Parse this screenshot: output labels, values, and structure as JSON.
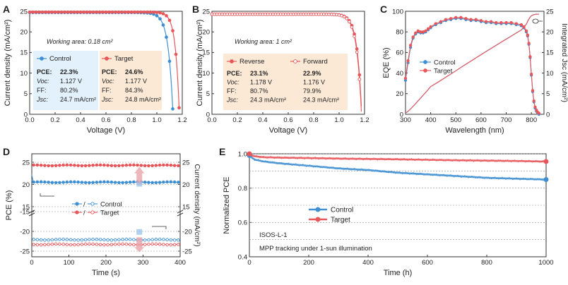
{
  "colors": {
    "blue": "#3f8fd2",
    "red": "#e8565a",
    "axis": "#333333",
    "grid": "#8a8a8a",
    "box_blue": "#e2f1fb",
    "box_orange": "#fbe9d6"
  },
  "chart_data": [
    {
      "panel": "A",
      "type": "line",
      "xlabel": "Voltage (V)",
      "ylabel": "Current density (mA/cm²)",
      "xlim": [
        0.0,
        1.2
      ],
      "ylim": [
        0,
        25
      ],
      "xticks": [
        "0.0",
        "0.2",
        "0.4",
        "0.6",
        "0.8",
        "1.0",
        "1.2"
      ],
      "yticks": [
        "0",
        "5",
        "10",
        "15",
        "20",
        "25"
      ],
      "annotation": "Working area: 0.18 cm²",
      "series": [
        {
          "name": "Control",
          "color": "#3f8fd2",
          "jsc": 24.7,
          "voc": 1.127,
          "ff": 80.2
        },
        {
          "name": "Target",
          "color": "#e8565a",
          "jsc": 24.8,
          "voc": 1.177,
          "ff": 84.3
        }
      ],
      "table": {
        "headers": [
          "Control",
          "Target"
        ],
        "rows": [
          {
            "label": "PCE:",
            "values": [
              "22.3%",
              "24.6%"
            ]
          },
          {
            "label": "Voc:",
            "values": [
              "1.127 V",
              "1.177 V"
            ]
          },
          {
            "label": "FF:",
            "values": [
              "80.2%",
              "84.3%"
            ]
          },
          {
            "label": "Jsc:",
            "values": [
              "24.7 mA/cm²",
              "24.8 mA/cm²"
            ]
          }
        ]
      }
    },
    {
      "panel": "B",
      "type": "line",
      "xlabel": "Voltage (V)",
      "ylabel": "Current density (mA/cm²)",
      "xlim": [
        0.0,
        1.2
      ],
      "ylim": [
        0,
        25
      ],
      "xticks": [
        "0.0",
        "0.2",
        "0.4",
        "0.6",
        "0.8",
        "1.0",
        "1.2"
      ],
      "yticks": [
        "0",
        "5",
        "10",
        "15",
        "20",
        "25"
      ],
      "annotation": "Working area: 1 cm²",
      "series": [
        {
          "name": "Reverse",
          "color": "#e8565a",
          "jsc": 24.3,
          "voc": 1.178,
          "ff": 80.7
        },
        {
          "name": "Forward",
          "color": "#e8565a",
          "jsc": 24.3,
          "voc": 1.176,
          "ff": 79.9
        }
      ],
      "table": {
        "headers": [
          "Reverse",
          "Forward"
        ],
        "rows": [
          {
            "label": "PCE:",
            "values": [
              "23.1%",
              "22.9%"
            ]
          },
          {
            "label": "Voc:",
            "values": [
              "1.178 V",
              "1.176 V"
            ]
          },
          {
            "label": "FF:",
            "values": [
              "80.7%",
              "79.9%"
            ]
          },
          {
            "label": "Jsc:",
            "values": [
              "24.3 mA/cm²",
              "24.3 mA/cm²"
            ]
          }
        ]
      }
    },
    {
      "panel": "C",
      "type": "line",
      "xlabel": "Wavelength (nm)",
      "ylabel": "EQE (%)",
      "ylabel_right": "Integrated Jsc (mA/cm²)",
      "xlim": [
        300,
        850
      ],
      "ylim": [
        0,
        100
      ],
      "ylim_right": [
        0,
        25
      ],
      "xticks": [
        "300",
        "400",
        "500",
        "600",
        "700",
        "800"
      ],
      "yticks": [
        "0",
        "20",
        "40",
        "60",
        "80",
        "100"
      ],
      "yticks_right": [
        "0",
        "5",
        "10",
        "15",
        "20",
        "25"
      ],
      "legend": [
        "Control",
        "Target"
      ],
      "x": [
        300,
        310,
        320,
        330,
        340,
        350,
        360,
        370,
        380,
        390,
        400,
        420,
        440,
        460,
        480,
        500,
        520,
        540,
        560,
        580,
        600,
        620,
        640,
        660,
        680,
        700,
        720,
        740,
        760,
        770,
        780,
        785,
        790,
        795,
        800,
        805,
        810,
        815,
        820,
        825,
        830
      ],
      "series": [
        {
          "name": "Control",
          "color": "#3f8fd2",
          "values": [
            33,
            50,
            65,
            74,
            78,
            80,
            79,
            79,
            80,
            82,
            84,
            87,
            89,
            91,
            92,
            93,
            93,
            92,
            91,
            91,
            90,
            89,
            89,
            88,
            88,
            88,
            88,
            87,
            86,
            84,
            80,
            76,
            68,
            55,
            38,
            22,
            12,
            6,
            3,
            1,
            0
          ]
        },
        {
          "name": "Target",
          "color": "#e8565a",
          "values": [
            35,
            52,
            67,
            75,
            79,
            81,
            80,
            80,
            81,
            83,
            85,
            88,
            90,
            92,
            93,
            94,
            94,
            93,
            92,
            92,
            91,
            90,
            90,
            89,
            89,
            89,
            89,
            88,
            87,
            85,
            81,
            77,
            69,
            56,
            39,
            23,
            13,
            7,
            4,
            2,
            1
          ]
        }
      ],
      "integrated_end": 24.3
    },
    {
      "panel": "D",
      "type": "line",
      "xlabel": "Time (s)",
      "ylabel": "PCE (%)",
      "ylabel_right": "Current density (mA/cm²)",
      "xlim": [
        0,
        400
      ],
      "xticks": [
        "0",
        "100",
        "200",
        "300",
        "400"
      ],
      "yticks_upper": [
        "15",
        "20",
        "25"
      ],
      "yticks_lower": [
        "-25",
        "-20",
        "-15"
      ],
      "yticks_right_upper": [
        "15",
        "20",
        "25"
      ],
      "yticks_right_lower": [
        "-25",
        "-20"
      ],
      "legend": [
        "Control",
        "Target"
      ],
      "legend_sep": "/",
      "series": [
        {
          "name": "Control PCE",
          "color": "#3f8fd2",
          "value": 20.5
        },
        {
          "name": "Target PCE",
          "color": "#e8565a",
          "value": 24.3
        },
        {
          "name": "Control J",
          "color": "#3f8fd2",
          "value": -22.1
        },
        {
          "name": "Target J",
          "color": "#e8565a",
          "value": -23.3
        }
      ]
    },
    {
      "panel": "E",
      "type": "line",
      "xlabel": "Time (h)",
      "ylabel": "Normalized PCE",
      "xlim": [
        0,
        1000
      ],
      "ylim": [
        0.4,
        1.0
      ],
      "xticks": [
        "0",
        "200",
        "400",
        "600",
        "800",
        "1000"
      ],
      "yticks": [
        "0.4",
        "0.6",
        "0.8",
        "1.0"
      ],
      "legend": [
        "Control",
        "Target"
      ],
      "annotations": [
        "ISOS-L-1",
        "MPP tracking under 1-sun illumination"
      ],
      "x": [
        0,
        10,
        20,
        50,
        100,
        200,
        300,
        400,
        500,
        600,
        700,
        800,
        900,
        1000
      ],
      "series": [
        {
          "name": "Control",
          "color": "#3f8fd2",
          "values": [
            0.99,
            0.975,
            0.965,
            0.955,
            0.945,
            0.93,
            0.915,
            0.905,
            0.89,
            0.88,
            0.87,
            0.86,
            0.855,
            0.85
          ]
        },
        {
          "name": "Target",
          "color": "#e8565a",
          "values": [
            1.0,
            0.99,
            0.985,
            0.98,
            0.978,
            0.975,
            0.972,
            0.97,
            0.968,
            0.965,
            0.962,
            0.96,
            0.958,
            0.955
          ]
        }
      ]
    }
  ]
}
